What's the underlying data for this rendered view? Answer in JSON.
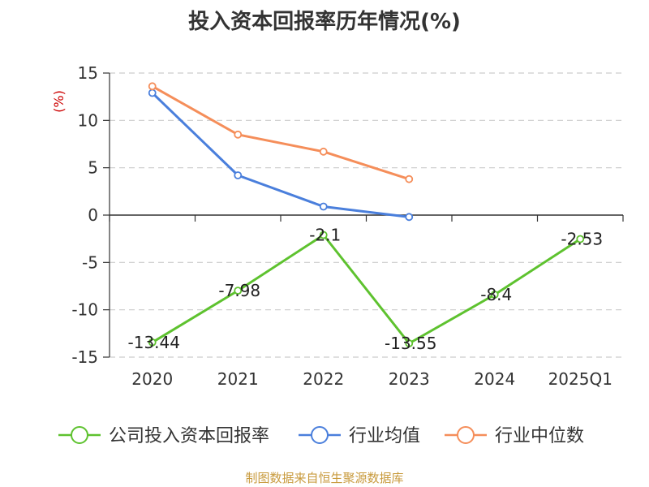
{
  "title": "投入资本回报率历年情况(%)",
  "source": "制图数据来自恒生聚源数据库",
  "chart_data": {
    "type": "line",
    "title": "投入资本回报率历年情况(%)",
    "ylabel": "(%)",
    "xlabel": "",
    "categories": [
      "2020",
      "2021",
      "2022",
      "2023",
      "2024",
      "2025Q1"
    ],
    "ylim": [
      -15,
      15
    ],
    "yticks": [
      15,
      10,
      5,
      0,
      -5,
      -10,
      -15
    ],
    "grid": true,
    "legend_position": "bottom",
    "series": [
      {
        "name": "公司投入资本回报率",
        "color": "#5ec22f",
        "values": [
          -13.44,
          -7.98,
          -2.1,
          -13.55,
          -8.4,
          -2.53
        ],
        "labels": [
          "-13.44",
          "-7.98",
          "-2.1",
          "-13.55",
          "-8.4",
          "-2.53"
        ]
      },
      {
        "name": "行业均值",
        "color": "#4a7fdc",
        "values": [
          12.9,
          4.2,
          0.9,
          -0.2,
          null,
          null
        ]
      },
      {
        "name": "行业中位数",
        "color": "#f58e5a",
        "values": [
          13.6,
          8.5,
          6.7,
          3.8,
          null,
          null
        ]
      }
    ]
  }
}
